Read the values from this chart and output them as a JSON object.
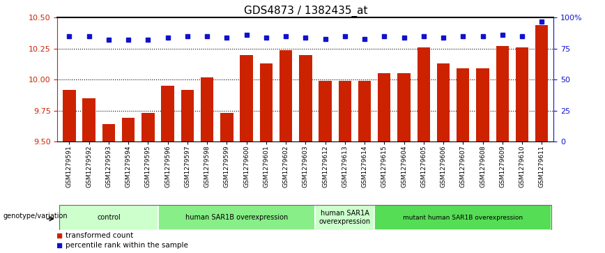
{
  "title": "GDS4873 / 1382435_at",
  "samples": [
    "GSM1279591",
    "GSM1279592",
    "GSM1279593",
    "GSM1279594",
    "GSM1279595",
    "GSM1279596",
    "GSM1279597",
    "GSM1279598",
    "GSM1279599",
    "GSM1279600",
    "GSM1279601",
    "GSM1279602",
    "GSM1279603",
    "GSM1279612",
    "GSM1279613",
    "GSM1279614",
    "GSM1279615",
    "GSM1279604",
    "GSM1279605",
    "GSM1279606",
    "GSM1279607",
    "GSM1279608",
    "GSM1279609",
    "GSM1279610",
    "GSM1279611"
  ],
  "bar_values": [
    9.92,
    9.85,
    9.64,
    9.69,
    9.73,
    9.95,
    9.92,
    10.02,
    9.73,
    10.2,
    10.13,
    10.24,
    10.2,
    9.99,
    9.99,
    9.99,
    10.05,
    10.05,
    10.26,
    10.13,
    10.09,
    10.09,
    10.27,
    10.26,
    10.44
  ],
  "percentile_values": [
    85,
    85,
    82,
    82,
    82,
    84,
    85,
    85,
    84,
    86,
    84,
    85,
    84,
    83,
    85,
    83,
    85,
    84,
    85,
    84,
    85,
    85,
    86,
    85,
    97
  ],
  "ylim_left": [
    9.5,
    10.5
  ],
  "ylim_right": [
    0,
    100
  ],
  "yticks_left": [
    9.5,
    9.75,
    10.0,
    10.25,
    10.5
  ],
  "yticks_right": [
    0,
    25,
    50,
    75,
    100
  ],
  "ytick_labels_right": [
    "0",
    "25",
    "50",
    "75",
    "100%"
  ],
  "gridlines": [
    9.75,
    10.0,
    10.25
  ],
  "bar_color": "#cc2200",
  "dot_color": "#1111cc",
  "groups": [
    {
      "label": "control",
      "start": 0,
      "end": 4,
      "color": "#ccffcc"
    },
    {
      "label": "human SAR1B overexpression",
      "start": 5,
      "end": 12,
      "color": "#88ee88"
    },
    {
      "label": "human SAR1A\noverexpression",
      "start": 13,
      "end": 15,
      "color": "#ccffcc"
    },
    {
      "label": "mutant human SAR1B overexpression",
      "start": 16,
      "end": 24,
      "color": "#55dd55"
    }
  ],
  "xlabel_left": "genotype/variation",
  "legend_items": [
    "transformed count",
    "percentile rank within the sample"
  ],
  "legend_colors": [
    "#cc2200",
    "#1111cc"
  ],
  "tick_color_left": "#cc2200",
  "tick_color_right": "#1111cc",
  "background_color": "#ffffff",
  "title_fontsize": 11,
  "tick_fontsize": 8,
  "bar_width": 0.65
}
